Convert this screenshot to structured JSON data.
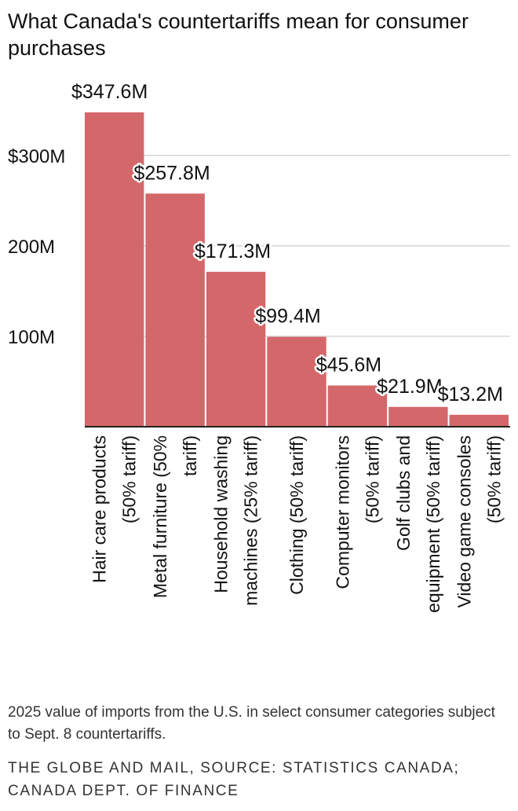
{
  "header": {
    "title": "What Canada's countertariffs mean for consumer purchases"
  },
  "footer": {
    "note": "2025 value of imports from the U.S. in select consumer categories subject to Sept. 8 countertariffs.",
    "source": "THE GLOBE AND MAIL, SOURCE: STATISTICS CANADA; CANADA DEPT. OF FINANCE"
  },
  "chart_data": {
    "type": "bar",
    "orientation": "vertical",
    "categories": [
      [
        "Hair care products",
        "(50% tariff)"
      ],
      [
        "Metal furniture (50%",
        "tariff)"
      ],
      [
        "Household washing",
        "machines (25% tariff)"
      ],
      [
        "Clothing (50% tariff)"
      ],
      [
        "Computer monitors",
        "(50% tariff)"
      ],
      [
        "Golf clubs and",
        "equipment (50% tariff)"
      ],
      [
        "Video game consoles",
        "(50% tariff)"
      ]
    ],
    "values": [
      347.6,
      257.8,
      171.3,
      99.4,
      45.6,
      21.9,
      13.2
    ],
    "value_labels": [
      "$347.6M",
      "$257.8M",
      "$171.3M",
      "$99.4M",
      "$45.6M",
      "$21.9M",
      "$13.2M"
    ],
    "y_ticks": [
      100,
      200,
      300
    ],
    "y_tick_labels": [
      "100M",
      "200M",
      "$300M"
    ],
    "ylim": [
      0,
      347.6
    ],
    "grid": true,
    "bar_color": "#d4676a",
    "grid_color": "#cccccc",
    "axis_color": "#222222"
  }
}
